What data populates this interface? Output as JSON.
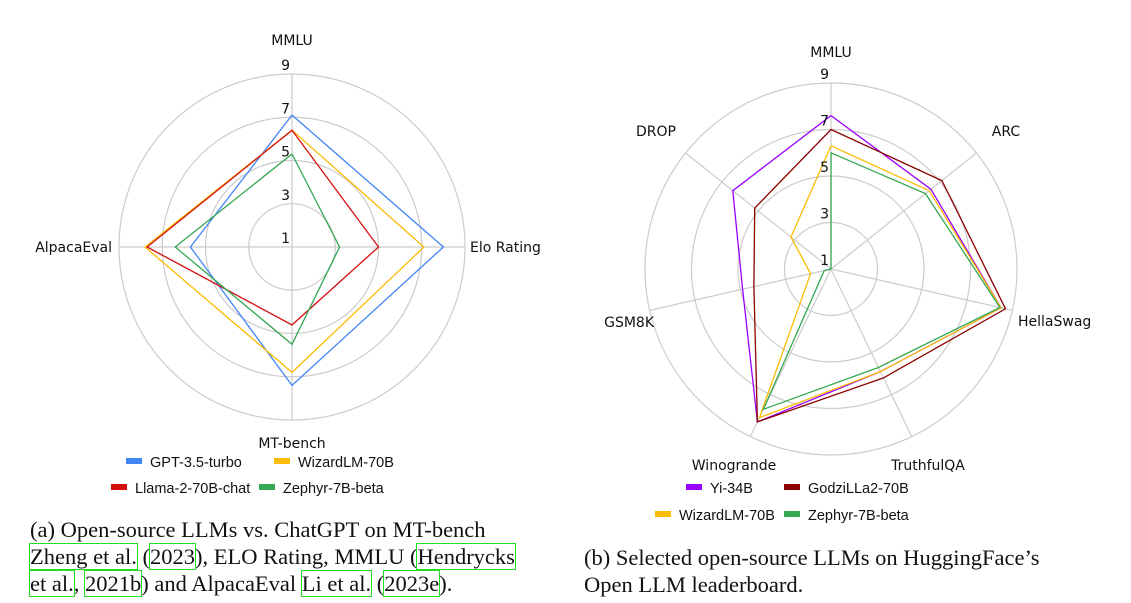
{
  "chart_data": [
    {
      "type": "radar",
      "axes": [
        "MMLU",
        "Elo Rating",
        "MT-bench",
        "AlpacaEval"
      ],
      "rlim": [
        1,
        9
      ],
      "ticks": [
        "1",
        "3",
        "5",
        "7",
        "9"
      ],
      "grid": true,
      "legend": "bottom",
      "series": [
        {
          "name": "GPT-3.5-turbo",
          "color": "#4285f4",
          "values": [
            7.1,
            8.0,
            7.4,
            5.7
          ]
        },
        {
          "name": "WizardLM-70B",
          "color": "#fbbc04",
          "values": [
            6.4,
            7.1,
            6.8,
            7.8
          ]
        },
        {
          "name": "Llama-2-70B-chat",
          "color": "#d50f0f",
          "values": [
            6.4,
            5.0,
            4.6,
            7.7
          ]
        },
        {
          "name": "Zephyr-7B-beta",
          "color": "#34a853",
          "values": [
            5.3,
            3.2,
            5.5,
            6.4
          ]
        }
      ]
    },
    {
      "type": "radar",
      "axes": [
        "MMLU",
        "ARC",
        "HellaSwag",
        "TruthfulQA",
        "Winogrande",
        "GSM8K",
        "DROP"
      ],
      "rlim": [
        1,
        9
      ],
      "ticks": [
        "1",
        "3",
        "5",
        "7",
        "9"
      ],
      "grid": true,
      "legend": "bottom",
      "series": [
        {
          "name": "Yi-34B",
          "color": "#9900ff",
          "values": [
            7.6,
            6.5,
            8.5,
            5.9,
            8.3,
            4.9,
            6.4
          ]
        },
        {
          "name": "GodziLLa2-70B",
          "color": "#8b0000",
          "values": [
            7.0,
            7.1,
            8.7,
            6.2,
            8.3,
            4.4,
            5.2
          ]
        },
        {
          "name": "WizardLM-70B",
          "color": "#fbbc04",
          "values": [
            6.3,
            6.4,
            8.5,
            5.9,
            8.1,
            1.9,
            3.2
          ]
        },
        {
          "name": "Zephyr-7B-beta",
          "color": "#34a853",
          "values": [
            6.0,
            6.2,
            8.45,
            5.7,
            7.7,
            1.3,
            1.0
          ]
        }
      ]
    }
  ],
  "captions": {
    "a": {
      "l1": "(a) Open-source LLMs vs.  ChatGPT on MT-bench",
      "c1": "Zheng et al.",
      "p1": " (",
      "c2": "2023",
      "p2": "), ELO Rating, MMLU (",
      "c3": "Hendrycks",
      "c3b": "et al.",
      "p3": ", ",
      "c4": "2021b",
      "p4": ") and AlpacaEval ",
      "c5": "Li et al.",
      "p5": " (",
      "c6": "2023e",
      "p6": ")."
    },
    "b": {
      "l1": "(b) Selected open-source LLMs on HuggingFace’s",
      "l2": "Open LLM leaderboard."
    }
  }
}
